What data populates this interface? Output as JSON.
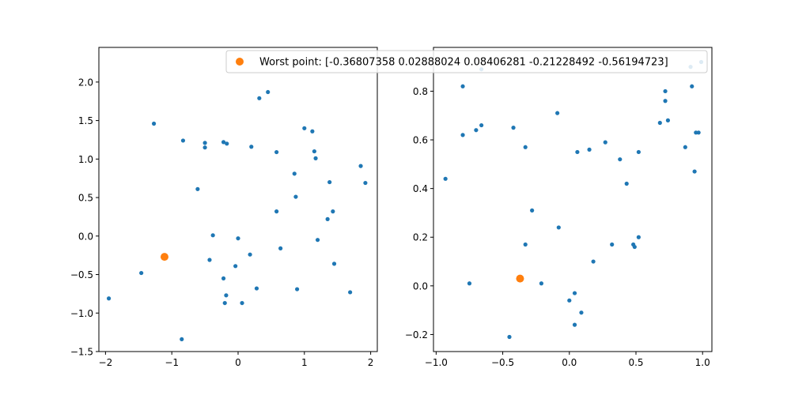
{
  "chart_data": [
    {
      "type": "scatter",
      "xlim": [
        -2.1,
        2.1
      ],
      "ylim": [
        -1.5,
        2.45
      ],
      "xticks": [
        -2,
        -1,
        0,
        1,
        2
      ],
      "yticks": [
        -1.5,
        -1.0,
        -0.5,
        0.0,
        0.5,
        1.0,
        1.5,
        2.0
      ],
      "xtick_labels": [
        "−2",
        "−1",
        "0",
        "1",
        "2"
      ],
      "ytick_labels": [
        "−1.5",
        "−1.0",
        "−0.5",
        "0.0",
        "0.5",
        "1.0",
        "1.5",
        "2.0"
      ],
      "grid": false,
      "series": [
        {
          "color": "#1f77b4",
          "points": [
            [
              -1.95,
              -0.81
            ],
            [
              -1.46,
              -0.48
            ],
            [
              -1.27,
              1.46
            ],
            [
              -0.83,
              1.24
            ],
            [
              -0.85,
              -1.34
            ],
            [
              -0.61,
              0.61
            ],
            [
              -0.5,
              1.21
            ],
            [
              -0.5,
              1.15
            ],
            [
              -0.43,
              -0.31
            ],
            [
              -0.38,
              0.01
            ],
            [
              -0.22,
              1.22
            ],
            [
              -0.17,
              1.2
            ],
            [
              -0.22,
              -0.55
            ],
            [
              -0.18,
              -0.77
            ],
            [
              -0.2,
              -0.87
            ],
            [
              -0.04,
              -0.39
            ],
            [
              0.0,
              -0.03
            ],
            [
              0.06,
              -0.87
            ],
            [
              0.18,
              -0.24
            ],
            [
              0.2,
              1.16
            ],
            [
              0.28,
              -0.68
            ],
            [
              0.32,
              1.79
            ],
            [
              0.45,
              1.87
            ],
            [
              0.58,
              1.09
            ],
            [
              0.58,
              0.32
            ],
            [
              0.64,
              -0.16
            ],
            [
              0.85,
              0.81
            ],
            [
              0.87,
              0.51
            ],
            [
              0.89,
              -0.69
            ],
            [
              1.0,
              1.4
            ],
            [
              1.12,
              1.36
            ],
            [
              1.15,
              1.1
            ],
            [
              1.17,
              1.01
            ],
            [
              1.2,
              -0.05
            ],
            [
              1.35,
              0.22
            ],
            [
              1.38,
              0.7
            ],
            [
              1.43,
              0.32
            ],
            [
              1.45,
              -0.36
            ],
            [
              1.69,
              -0.73
            ],
            [
              1.85,
              0.91
            ],
            [
              1.92,
              0.69
            ]
          ]
        },
        {
          "color": "#ff7f0e",
          "points": [
            [
              -1.11,
              -0.27
            ]
          ]
        }
      ]
    },
    {
      "type": "scatter",
      "xlim": [
        -1.02,
        1.07
      ],
      "ylim": [
        -0.27,
        0.98
      ],
      "xticks": [
        -1.0,
        -0.5,
        0.0,
        0.5,
        1.0
      ],
      "yticks": [
        -0.2,
        0.0,
        0.2,
        0.4,
        0.6,
        0.8
      ],
      "xtick_labels": [
        "−1.0",
        "−0.5",
        "0.0",
        "0.5",
        "1.0"
      ],
      "ytick_labels": [
        "−0.2",
        "0.0",
        "0.2",
        "0.4",
        "0.6",
        "0.8"
      ],
      "grid": false,
      "legend": {
        "placement": "upper-right",
        "entries": [
          {
            "label": "Worst point: [-0.36807358  0.02888024  0.08406281 -0.21228492 -0.56194723]",
            "color": "#ff7f0e"
          }
        ]
      },
      "series": [
        {
          "color": "#1f77b4",
          "points": [
            [
              -0.93,
              0.44
            ],
            [
              -0.8,
              0.82
            ],
            [
              -0.8,
              0.62
            ],
            [
              -0.75,
              0.01
            ],
            [
              -0.7,
              0.64
            ],
            [
              -0.66,
              0.89
            ],
            [
              -0.66,
              0.66
            ],
            [
              -0.45,
              -0.21
            ],
            [
              -0.42,
              0.65
            ],
            [
              -0.33,
              0.57
            ],
            [
              -0.33,
              0.17
            ],
            [
              -0.28,
              0.31
            ],
            [
              -0.21,
              0.01
            ],
            [
              -0.09,
              0.71
            ],
            [
              -0.08,
              0.24
            ],
            [
              0.0,
              -0.06
            ],
            [
              0.04,
              -0.03
            ],
            [
              0.04,
              -0.16
            ],
            [
              0.06,
              0.55
            ],
            [
              0.09,
              -0.11
            ],
            [
              0.15,
              0.56
            ],
            [
              0.18,
              0.1
            ],
            [
              0.27,
              0.59
            ],
            [
              0.32,
              0.17
            ],
            [
              0.38,
              0.52
            ],
            [
              0.43,
              0.42
            ],
            [
              0.48,
              0.17
            ],
            [
              0.49,
              0.16
            ],
            [
              0.52,
              0.55
            ],
            [
              0.52,
              0.2
            ],
            [
              0.68,
              0.67
            ],
            [
              0.72,
              0.8
            ],
            [
              0.72,
              0.76
            ],
            [
              0.74,
              0.68
            ],
            [
              0.87,
              0.57
            ],
            [
              0.91,
              0.9
            ],
            [
              0.92,
              0.82
            ],
            [
              0.94,
              0.47
            ],
            [
              0.95,
              0.63
            ],
            [
              0.97,
              0.63
            ],
            [
              0.99,
              0.92
            ]
          ]
        },
        {
          "color": "#ff7f0e",
          "points": [
            [
              -0.37,
              0.03
            ]
          ]
        }
      ]
    }
  ]
}
